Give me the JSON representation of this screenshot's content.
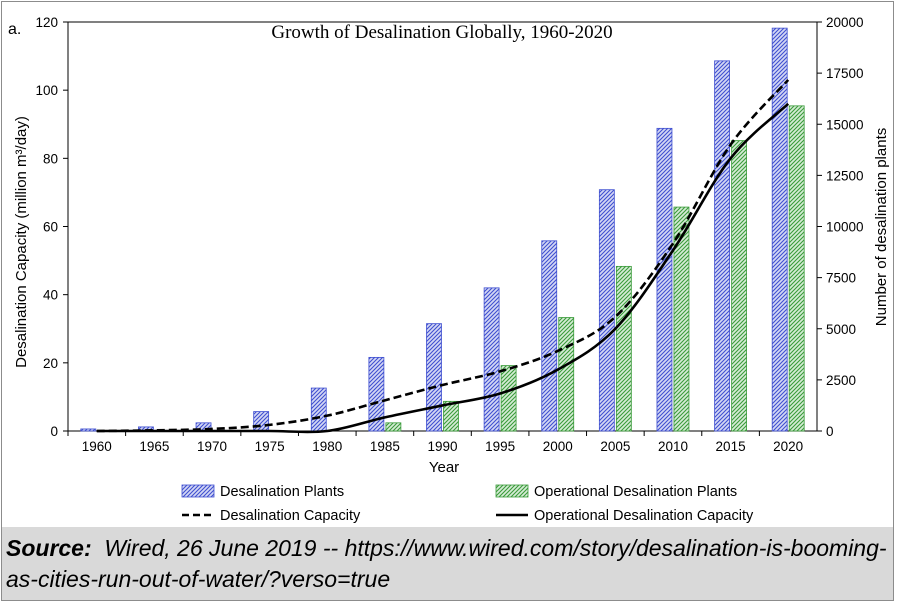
{
  "panel_label": "a.",
  "source": {
    "label": "Source:",
    "text": "Wired, 26 June 2019 -- https://www.wired.com/story/desalination-is-booming-as-cities-run-out-of-water/?verso=true"
  },
  "colors": {
    "plants_bar": "#3f4fd0",
    "operational_bar": "#3a9b3a",
    "capacity_line": "#000000"
  },
  "chart_data": {
    "type": "bar",
    "title": "Growth of Desalination Globally, 1960-2020",
    "xlabel": "Year",
    "ylabel_left": "Desalination Capacity (million m³/day)",
    "ylabel_right": "Number of desalination plants",
    "categories": [
      "1960",
      "1965",
      "1970",
      "1975",
      "1980",
      "1985",
      "1990",
      "1995",
      "2000",
      "2005",
      "2010",
      "2015",
      "2020"
    ],
    "y_left": {
      "lim": [
        0,
        120
      ],
      "ticks": [
        "0",
        "20",
        "40",
        "60",
        "80",
        "100",
        "120"
      ]
    },
    "y_right": {
      "lim": [
        0,
        20000
      ],
      "ticks": [
        "0",
        "2500",
        "5000",
        "7500",
        "10000",
        "12500",
        "15000",
        "17500",
        "20000"
      ]
    },
    "series": [
      {
        "name": "Desalination Plants",
        "kind": "bar",
        "axis": "right",
        "values": [
          100,
          200,
          400,
          950,
          2100,
          3600,
          5250,
          7000,
          9300,
          11800,
          14800,
          18100,
          19700
        ]
      },
      {
        "name": "Operational Desalination Plants",
        "kind": "bar",
        "axis": "right",
        "values": [
          0,
          0,
          0,
          0,
          0,
          400,
          1450,
          3200,
          5550,
          8050,
          10950,
          14200,
          15900
        ]
      },
      {
        "name": "Desalination Capacity",
        "kind": "line",
        "style": "dashed",
        "axis": "left",
        "values": [
          0,
          0.2,
          0.6,
          1.8,
          4.5,
          9,
          13.5,
          17.5,
          23.5,
          33.5,
          55,
          84,
          103
        ]
      },
      {
        "name": "Operational Desalination Capacity",
        "kind": "line",
        "style": "solid",
        "axis": "left",
        "values": [
          0,
          0,
          0,
          0,
          0,
          4,
          7.5,
          11,
          18,
          30,
          53,
          80,
          96
        ]
      }
    ],
    "legend_position": "bottom",
    "grid": false
  }
}
